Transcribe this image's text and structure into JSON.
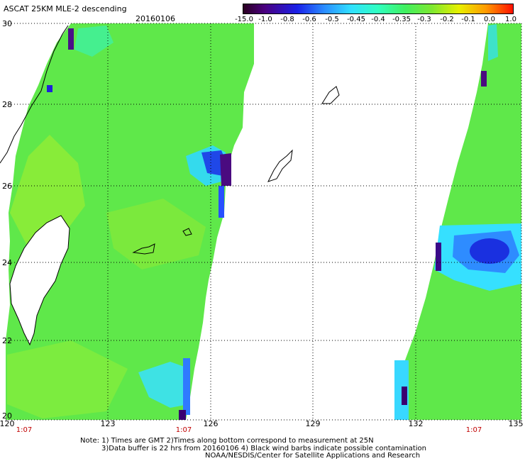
{
  "header": {
    "title": "ASCAT 25KM MLE-2 descending",
    "date": "20160106"
  },
  "colorbar": {
    "labels": [
      "-15.0",
      "-1.0",
      "-0.8",
      "-0.6",
      "-0.5",
      "-0.45",
      "-0.4",
      "-0.35",
      "-0.3",
      "-0.2",
      "-0.1",
      "0.0",
      "1.0"
    ],
    "colors": [
      "#3a0030",
      "#5a0090",
      "#2030e0",
      "#2a8cff",
      "#40c8ff",
      "#00ffee",
      "#40ff80",
      "#40e040",
      "#9aee30",
      "#e8f000",
      "#ffb000",
      "#ff5000",
      "#ff0000"
    ]
  },
  "axes": {
    "lat_labels": [
      "30",
      "28",
      "26",
      "24",
      "22",
      "20"
    ],
    "lon_labels": [
      "120",
      "123",
      "126",
      "129",
      "132",
      "135"
    ],
    "time_labels": [
      "1:07",
      "1:07",
      "1:07"
    ]
  },
  "notes": {
    "line1": "Note: 1) Times are GMT 2)Times along bottom correspond to measurement at 25N",
    "line2": "3)Data buffer is 22 hrs from 20160106 4) Black wind barbs indicate possible contamination",
    "line3": "NOAA/NESDIS/Center for Satellite Applications and Research"
  }
}
